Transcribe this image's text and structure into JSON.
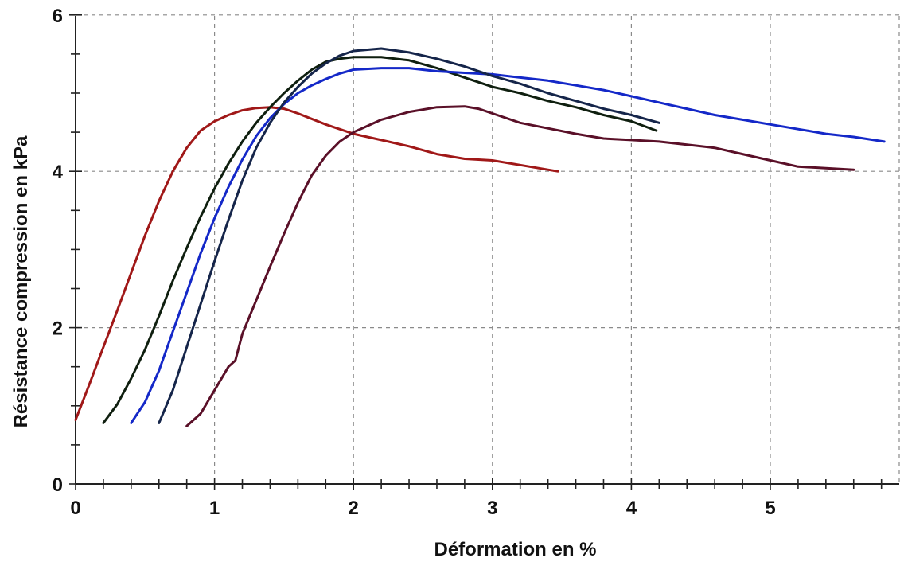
{
  "chart_data": {
    "type": "line",
    "title": "",
    "xlabel": "Déformation en %",
    "ylabel": "Résistance compression en kPa",
    "xlim": [
      0,
      5.9
    ],
    "ylim": [
      0,
      6
    ],
    "x_ticks": [
      0,
      1,
      2,
      3,
      4,
      5
    ],
    "y_ticks": [
      0,
      2,
      4,
      6
    ],
    "grid": true,
    "legend": "none",
    "series": [
      {
        "color": "#a01818",
        "points": [
          [
            0.0,
            0.82
          ],
          [
            0.1,
            1.28
          ],
          [
            0.2,
            1.75
          ],
          [
            0.3,
            2.22
          ],
          [
            0.4,
            2.7
          ],
          [
            0.5,
            3.18
          ],
          [
            0.6,
            3.62
          ],
          [
            0.7,
            4.0
          ],
          [
            0.8,
            4.3
          ],
          [
            0.9,
            4.52
          ],
          [
            1.0,
            4.64
          ],
          [
            1.1,
            4.72
          ],
          [
            1.2,
            4.78
          ],
          [
            1.3,
            4.81
          ],
          [
            1.4,
            4.82
          ],
          [
            1.5,
            4.8
          ],
          [
            1.6,
            4.74
          ],
          [
            1.8,
            4.6
          ],
          [
            2.0,
            4.48
          ],
          [
            2.2,
            4.4
          ],
          [
            2.4,
            4.32
          ],
          [
            2.6,
            4.22
          ],
          [
            2.8,
            4.16
          ],
          [
            3.0,
            4.14
          ],
          [
            3.2,
            4.08
          ],
          [
            3.4,
            4.02
          ],
          [
            3.47,
            4.0
          ]
        ]
      },
      {
        "color": "#0f1f0f",
        "points": [
          [
            0.2,
            0.78
          ],
          [
            0.3,
            1.02
          ],
          [
            0.4,
            1.35
          ],
          [
            0.5,
            1.72
          ],
          [
            0.6,
            2.15
          ],
          [
            0.7,
            2.6
          ],
          [
            0.8,
            3.02
          ],
          [
            0.9,
            3.42
          ],
          [
            1.0,
            3.78
          ],
          [
            1.1,
            4.1
          ],
          [
            1.2,
            4.38
          ],
          [
            1.3,
            4.62
          ],
          [
            1.4,
            4.82
          ],
          [
            1.5,
            5.0
          ],
          [
            1.6,
            5.16
          ],
          [
            1.7,
            5.3
          ],
          [
            1.8,
            5.4
          ],
          [
            1.9,
            5.44
          ],
          [
            2.0,
            5.46
          ],
          [
            2.2,
            5.46
          ],
          [
            2.4,
            5.42
          ],
          [
            2.6,
            5.32
          ],
          [
            2.8,
            5.2
          ],
          [
            3.0,
            5.08
          ],
          [
            3.2,
            5.0
          ],
          [
            3.4,
            4.9
          ],
          [
            3.6,
            4.82
          ],
          [
            3.8,
            4.72
          ],
          [
            4.0,
            4.64
          ],
          [
            4.18,
            4.52
          ]
        ]
      },
      {
        "color": "#1428c8",
        "points": [
          [
            0.4,
            0.78
          ],
          [
            0.5,
            1.05
          ],
          [
            0.6,
            1.45
          ],
          [
            0.7,
            1.95
          ],
          [
            0.8,
            2.45
          ],
          [
            0.9,
            2.95
          ],
          [
            1.0,
            3.4
          ],
          [
            1.1,
            3.8
          ],
          [
            1.2,
            4.15
          ],
          [
            1.3,
            4.45
          ],
          [
            1.4,
            4.68
          ],
          [
            1.5,
            4.86
          ],
          [
            1.6,
            5.0
          ],
          [
            1.7,
            5.1
          ],
          [
            1.8,
            5.18
          ],
          [
            1.9,
            5.25
          ],
          [
            2.0,
            5.3
          ],
          [
            2.2,
            5.32
          ],
          [
            2.4,
            5.32
          ],
          [
            2.6,
            5.28
          ],
          [
            2.8,
            5.26
          ],
          [
            3.0,
            5.24
          ],
          [
            3.2,
            5.2
          ],
          [
            3.4,
            5.16
          ],
          [
            3.6,
            5.1
          ],
          [
            3.8,
            5.04
          ],
          [
            4.0,
            4.96
          ],
          [
            4.2,
            4.88
          ],
          [
            4.4,
            4.8
          ],
          [
            4.6,
            4.72
          ],
          [
            4.8,
            4.66
          ],
          [
            5.0,
            4.6
          ],
          [
            5.2,
            4.54
          ],
          [
            5.4,
            4.48
          ],
          [
            5.6,
            4.44
          ],
          [
            5.82,
            4.38
          ]
        ]
      },
      {
        "color": "#15254a",
        "points": [
          [
            0.6,
            0.78
          ],
          [
            0.7,
            1.2
          ],
          [
            0.8,
            1.75
          ],
          [
            0.9,
            2.3
          ],
          [
            1.0,
            2.85
          ],
          [
            1.1,
            3.38
          ],
          [
            1.2,
            3.88
          ],
          [
            1.3,
            4.3
          ],
          [
            1.4,
            4.62
          ],
          [
            1.5,
            4.88
          ],
          [
            1.6,
            5.08
          ],
          [
            1.7,
            5.25
          ],
          [
            1.8,
            5.38
          ],
          [
            1.9,
            5.48
          ],
          [
            2.0,
            5.54
          ],
          [
            2.2,
            5.57
          ],
          [
            2.4,
            5.52
          ],
          [
            2.6,
            5.44
          ],
          [
            2.8,
            5.34
          ],
          [
            3.0,
            5.22
          ],
          [
            3.2,
            5.12
          ],
          [
            3.4,
            5.0
          ],
          [
            3.6,
            4.9
          ],
          [
            3.8,
            4.8
          ],
          [
            4.0,
            4.72
          ],
          [
            4.2,
            4.62
          ]
        ]
      },
      {
        "color": "#5a1028",
        "points": [
          [
            0.8,
            0.74
          ],
          [
            0.9,
            0.9
          ],
          [
            1.0,
            1.2
          ],
          [
            1.1,
            1.5
          ],
          [
            1.15,
            1.58
          ],
          [
            1.2,
            1.92
          ],
          [
            1.3,
            2.35
          ],
          [
            1.4,
            2.78
          ],
          [
            1.5,
            3.2
          ],
          [
            1.6,
            3.6
          ],
          [
            1.7,
            3.95
          ],
          [
            1.8,
            4.2
          ],
          [
            1.9,
            4.38
          ],
          [
            2.0,
            4.5
          ],
          [
            2.2,
            4.66
          ],
          [
            2.4,
            4.76
          ],
          [
            2.6,
            4.82
          ],
          [
            2.8,
            4.83
          ],
          [
            2.9,
            4.8
          ],
          [
            3.0,
            4.74
          ],
          [
            3.2,
            4.62
          ],
          [
            3.4,
            4.55
          ],
          [
            3.6,
            4.48
          ],
          [
            3.8,
            4.42
          ],
          [
            4.0,
            4.4
          ],
          [
            4.2,
            4.38
          ],
          [
            4.4,
            4.34
          ],
          [
            4.6,
            4.3
          ],
          [
            4.8,
            4.22
          ],
          [
            5.0,
            4.14
          ],
          [
            5.2,
            4.06
          ],
          [
            5.4,
            4.04
          ],
          [
            5.6,
            4.02
          ]
        ]
      }
    ]
  }
}
